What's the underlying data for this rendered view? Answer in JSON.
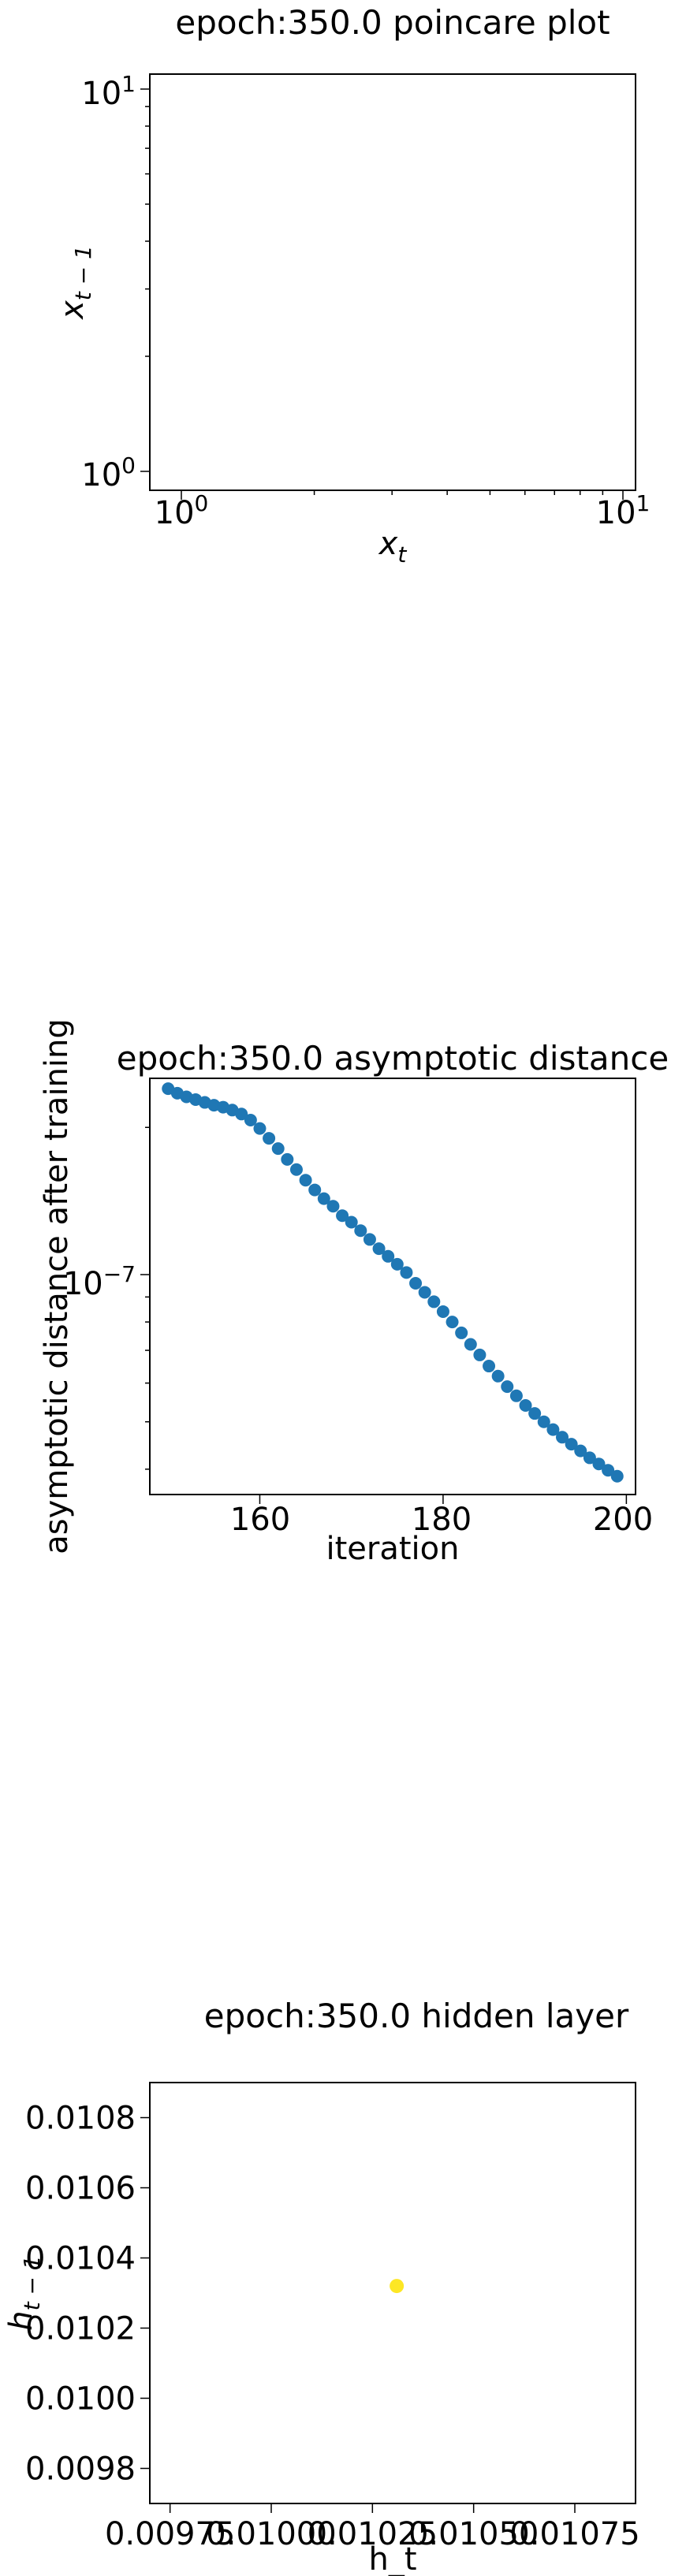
{
  "chart_data": [
    {
      "type": "scatter",
      "title": "epoch:350.0 poincare plot",
      "xlabel": "x_t",
      "ylabel": "x_{t-1}",
      "xscale": "log",
      "yscale": "log",
      "xlim": [
        1,
        10
      ],
      "ylim": [
        1,
        10
      ],
      "xticks": [
        "10^0",
        "10^1"
      ],
      "yticks": [
        "10^0",
        "10^1"
      ],
      "series": [
        {
          "x": [],
          "y": []
        }
      ],
      "grid": false
    },
    {
      "type": "scatter",
      "title": "epoch:350.0 asymptotic distance",
      "xlabel": "iteration",
      "ylabel": "asymptotic distance after training",
      "yscale": "log",
      "xlim": [
        148,
        201
      ],
      "xticks": [
        "160",
        "180",
        "200"
      ],
      "yticks": [
        "10^-7"
      ],
      "color": "#1f77b4",
      "series": [
        {
          "x": [
            150,
            151,
            152,
            153,
            154,
            155,
            156,
            157,
            158,
            159,
            160,
            161,
            162,
            163,
            164,
            165,
            166,
            167,
            168,
            169,
            170,
            171,
            172,
            173,
            174,
            175,
            176,
            177,
            178,
            179,
            180,
            181,
            182,
            183,
            184,
            185,
            186,
            187,
            188,
            189,
            190,
            191,
            192,
            193,
            194,
            195,
            196,
            197,
            198,
            199
          ],
          "y": [
            2.4e-07,
            2.35e-07,
            2.31e-07,
            2.28e-07,
            2.25e-07,
            2.22e-07,
            2.2e-07,
            2.17e-07,
            2.13e-07,
            2.07e-07,
            1.99e-07,
            1.9e-07,
            1.81e-07,
            1.72e-07,
            1.64e-07,
            1.56e-07,
            1.49e-07,
            1.43e-07,
            1.38e-07,
            1.32e-07,
            1.28e-07,
            1.23e-07,
            1.18e-07,
            1.13e-07,
            1.09e-07,
            1.05e-07,
            1.01e-07,
            9.6e-08,
            9.2e-08,
            8.8e-08,
            8.4e-08,
            8e-08,
            7.6e-08,
            7.2e-08,
            6.85e-08,
            6.5e-08,
            6.2e-08,
            5.9e-08,
            5.65e-08,
            5.4e-08,
            5.2e-08,
            5e-08,
            4.82e-08,
            4.65e-08,
            4.5e-08,
            4.36e-08,
            4.22e-08,
            4.1e-08,
            3.98e-08,
            3.87e-08
          ]
        }
      ],
      "grid": false
    },
    {
      "type": "scatter",
      "title": "epoch:350.0 hidden layer",
      "xlabel": "h_t",
      "ylabel": "h_{t-1}",
      "xlim": [
        0.0097,
        0.0109
      ],
      "ylim": [
        0.0097,
        0.0109
      ],
      "xticks": [
        0.00975,
        0.01,
        0.01025,
        0.0105,
        0.01075
      ],
      "xtick_labels": [
        "0.00975",
        "0.01000",
        "0.01025",
        "0.01050",
        "0.01075"
      ],
      "yticks": [
        0.0098,
        0.01,
        0.0102,
        0.0104,
        0.0106,
        0.0108
      ],
      "ytick_labels": [
        "0.0098",
        "0.0100",
        "0.0102",
        "0.0104",
        "0.0106",
        "0.0108"
      ],
      "color": "#fde725",
      "series": [
        {
          "x": [
            0.01031
          ],
          "y": [
            0.01032
          ]
        }
      ],
      "grid": false
    }
  ]
}
